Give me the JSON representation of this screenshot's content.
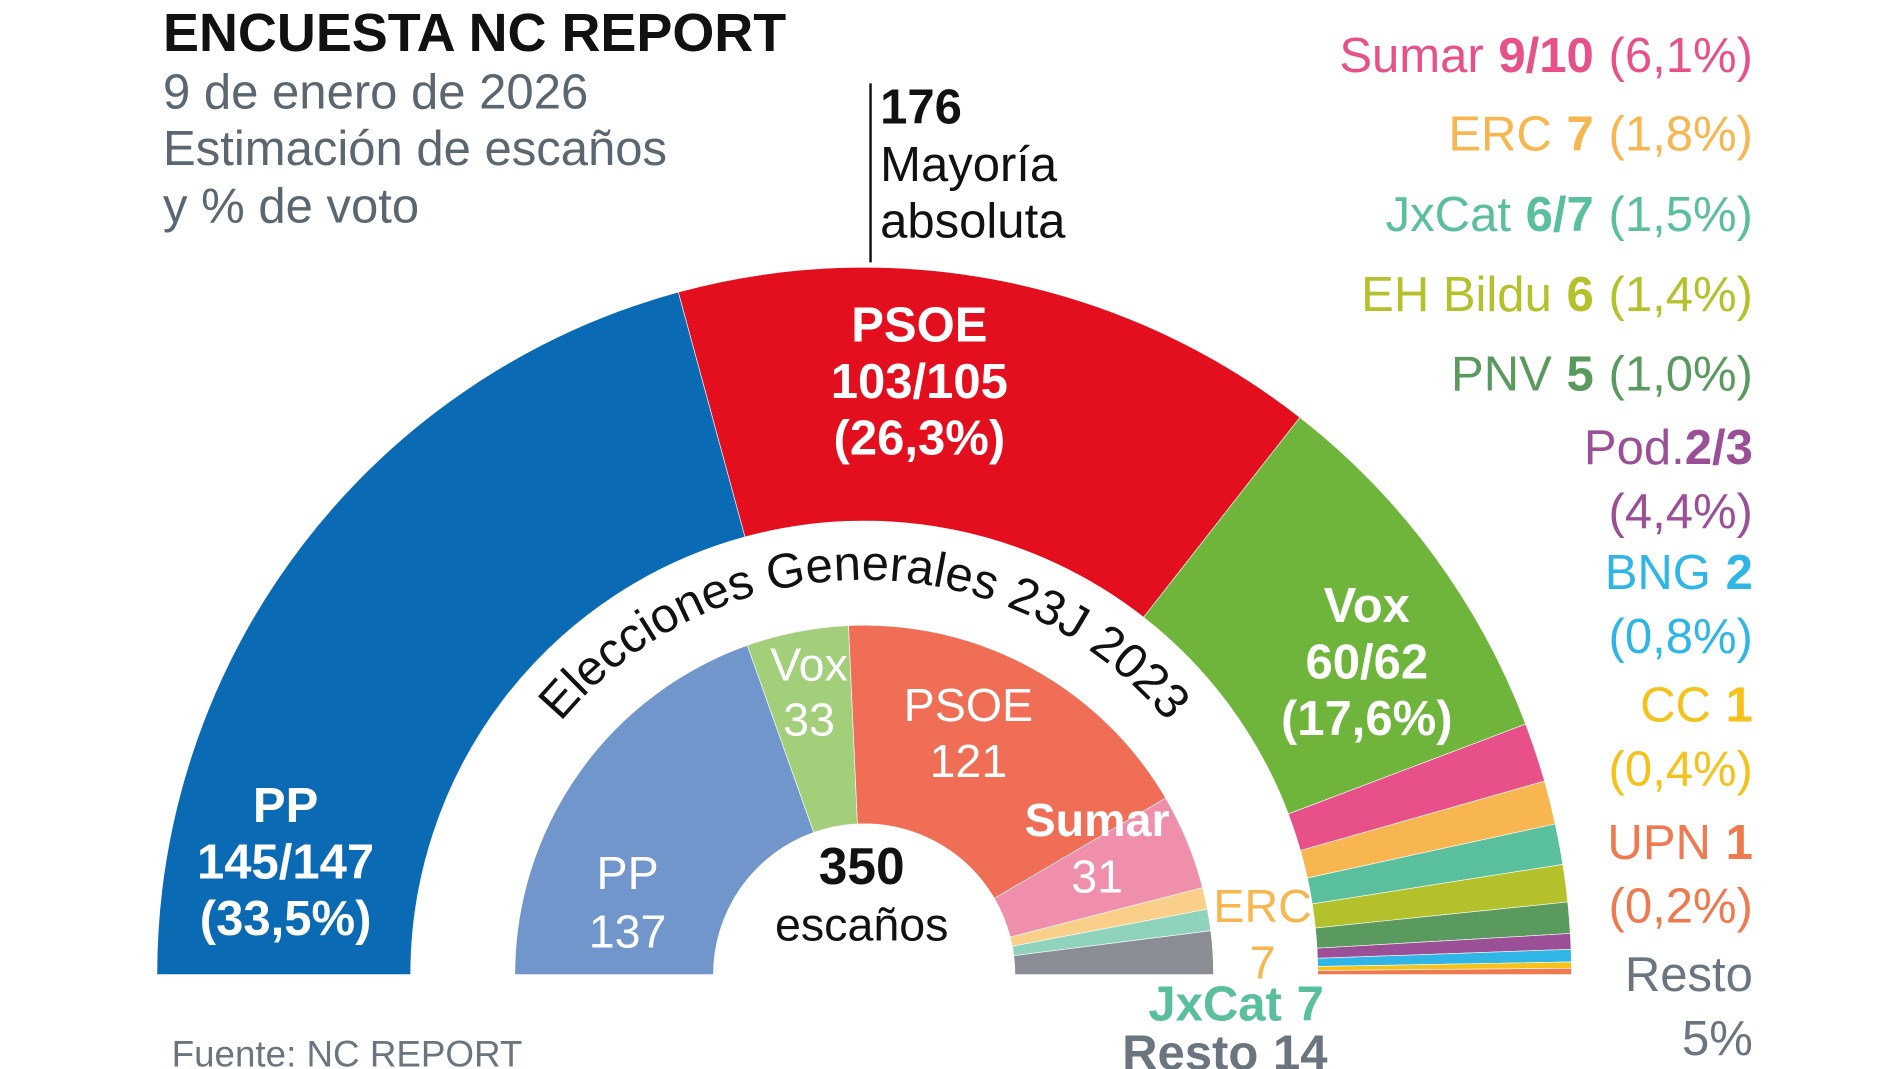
{
  "chart_data": {
    "type": "hemicycle",
    "title": "ENCUESTA NC REPORT",
    "subtitle": [
      "9 de enero de 2026",
      "Estimación de escaños",
      "y % de voto"
    ],
    "source": "Fuente: NC REPORT",
    "majority": {
      "seats": 176,
      "label": [
        "Mayoría",
        "absoluta"
      ]
    },
    "survey": [
      {
        "name": "PP",
        "color": "#0a6ab4",
        "seats_min": 145,
        "seats_max": 147,
        "seats_label": "145/147",
        "pct": 33.5,
        "pct_label": "(33,5%)"
      },
      {
        "name": "PSOE",
        "color": "#e30f1f",
        "seats_min": 103,
        "seats_max": 105,
        "seats_label": "103/105",
        "pct": 26.3,
        "pct_label": "(26,3%)"
      },
      {
        "name": "Vox",
        "color": "#6fb43b",
        "seats_min": 60,
        "seats_max": 62,
        "seats_label": "60/62",
        "pct": 17.6,
        "pct_label": "(17,6%)"
      },
      {
        "name": "Sumar",
        "color": "#e8508a",
        "seats_min": 9,
        "seats_max": 10,
        "seats_label": "9/10",
        "pct": 6.1,
        "pct_label": "(6,1%)"
      },
      {
        "name": "ERC",
        "color": "#f7b650",
        "seats_min": 7,
        "seats_max": 7,
        "seats_label": "7",
        "pct": 1.8,
        "pct_label": "(1,8%)"
      },
      {
        "name": "JxCat",
        "color": "#5abf9c",
        "seats_min": 6,
        "seats_max": 7,
        "seats_label": "6/7",
        "pct": 1.5,
        "pct_label": "(1,5%)"
      },
      {
        "name": "EH Bildu",
        "color": "#b5c12a",
        "seats_min": 6,
        "seats_max": 6,
        "seats_label": "6",
        "pct": 1.4,
        "pct_label": "(1,4%)"
      },
      {
        "name": "PNV",
        "color": "#5a9a5e",
        "seats_min": 5,
        "seats_max": 5,
        "seats_label": "5",
        "pct": 1.0,
        "pct_label": "(1,0%)"
      },
      {
        "name": "Pod.",
        "color": "#9b4f96",
        "seats_min": 2,
        "seats_max": 3,
        "seats_label": "2/3",
        "pct": 4.4,
        "pct_label": "(4,4%)"
      },
      {
        "name": "BNG",
        "color": "#2fb6e6",
        "seats_min": 2,
        "seats_max": 2,
        "seats_label": "2",
        "pct": 0.8,
        "pct_label": "(0,8%)"
      },
      {
        "name": "CC",
        "color": "#f4c21a",
        "seats_min": 1,
        "seats_max": 1,
        "seats_label": "1",
        "pct": 0.4,
        "pct_label": "(0,4%)"
      },
      {
        "name": "UPN",
        "color": "#ef7a4f",
        "seats_min": 1,
        "seats_max": 1,
        "seats_label": "1",
        "pct": 0.2,
        "pct_label": "(0,2%)"
      }
    ],
    "rest": {
      "name": "Resto",
      "pct": 5,
      "pct_label": "5%",
      "color": "#6b7580"
    },
    "previous": {
      "title": "Elecciones Generales 23J 2023",
      "total": 350,
      "total_label": "escaños",
      "parties": [
        {
          "name": "PP",
          "seats": 137,
          "color": "#7096cc"
        },
        {
          "name": "Vox",
          "seats": 33,
          "color": "#a3cf7b"
        },
        {
          "name": "PSOE",
          "seats": 121,
          "color": "#ef6e55"
        },
        {
          "name": "Sumar",
          "seats": 31,
          "color": "#f08fab"
        },
        {
          "name": "ERC",
          "seats": 7,
          "color": "#f9cf8a"
        },
        {
          "name": "JxCat",
          "seats": 7,
          "color": "#8fd3bd"
        },
        {
          "name": "Resto",
          "seats": 14,
          "color": "#8a8d93"
        }
      ]
    }
  }
}
